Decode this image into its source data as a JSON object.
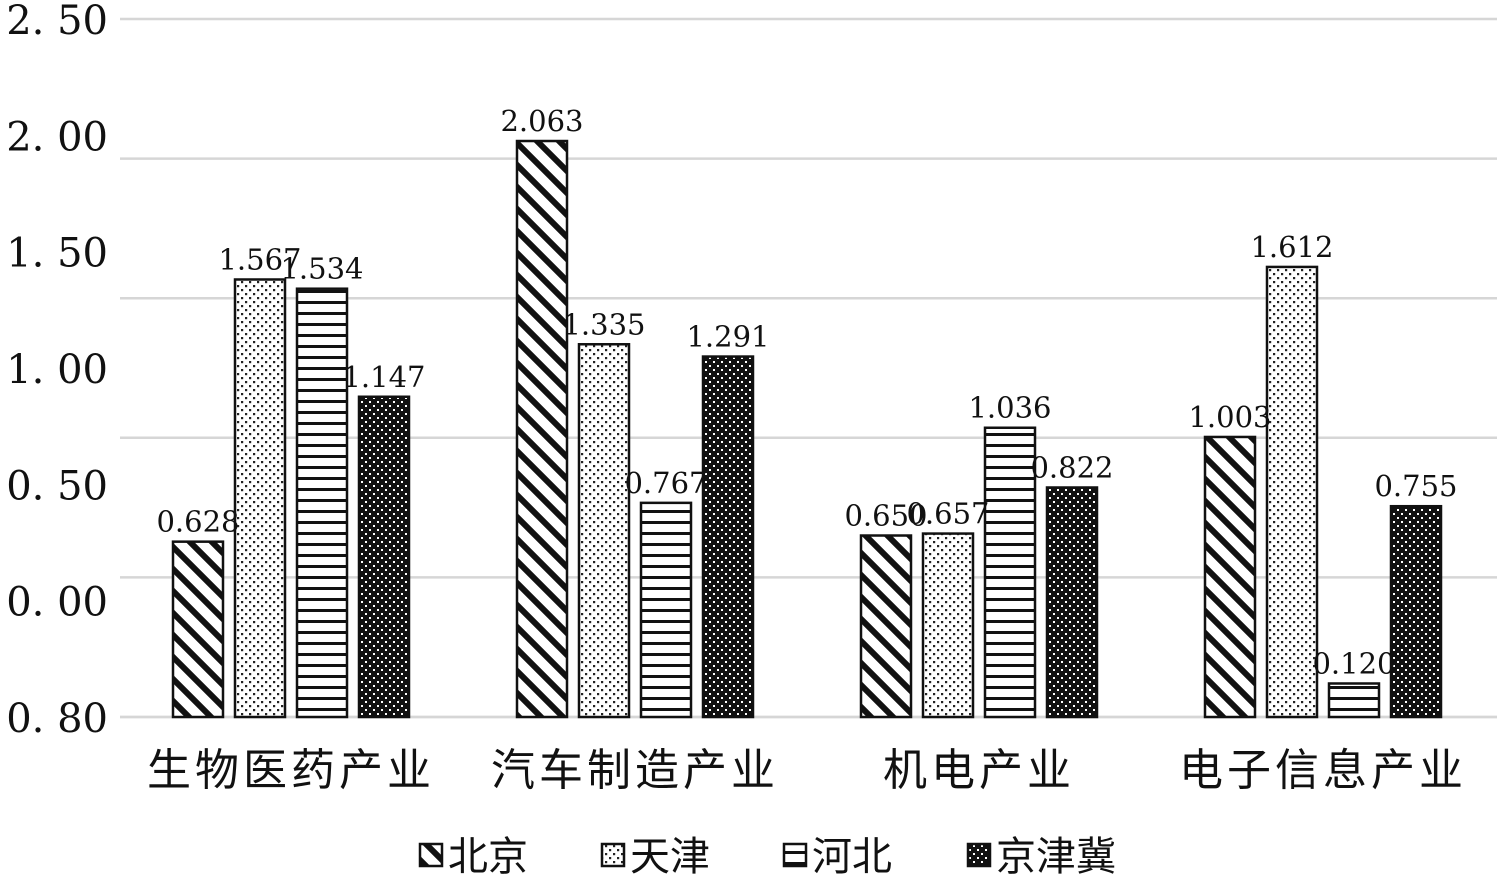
{
  "chart_data": {
    "type": "bar",
    "categories": [
      "生物医药产业",
      "汽车制造产业",
      "机电产业",
      "电子信息产业"
    ],
    "series": [
      {
        "name": "北京",
        "values": [
          0.628,
          2.063,
          0.65,
          1.003
        ],
        "labels": [
          "0.628",
          "2.063",
          "0.650",
          "1.003"
        ]
      },
      {
        "name": "天津",
        "values": [
          1.567,
          1.335,
          0.657,
          1.612
        ],
        "labels": [
          "1.567",
          "1.335",
          "0.657",
          "1.612"
        ]
      },
      {
        "name": "河北",
        "values": [
          1.534,
          0.767,
          1.036,
          0.12
        ],
        "labels": [
          "1.534",
          "0.767",
          "1.036",
          "0.120"
        ]
      },
      {
        "name": "京津冀",
        "values": [
          1.147,
          1.291,
          0.822,
          0.755
        ],
        "labels": [
          "1.147",
          "1.291",
          "0.822",
          "0.755"
        ]
      }
    ],
    "y_ticks": [
      "0. 80",
      "0. 00",
      "0. 50",
      "1. 00",
      "1. 50",
      "2. 00",
      "2. 50"
    ],
    "ylim": [
      0,
      2.5
    ],
    "grid": true,
    "legend_position": "bottom",
    "title": "",
    "xlabel": "",
    "ylabel": ""
  }
}
